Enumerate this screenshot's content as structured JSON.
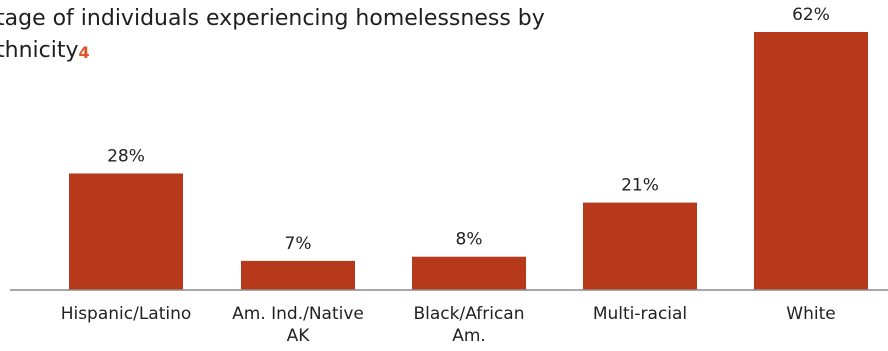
{
  "chart_data": {
    "type": "bar",
    "title_line1": "tage of individuals experiencing homelessness by",
    "title_line2": "thnicity",
    "title_footnote": "4",
    "categories": [
      [
        "Hispanic/Latino"
      ],
      [
        "Am. Ind./Native",
        "AK"
      ],
      [
        "Black/African",
        "Am."
      ],
      [
        "Multi-racial"
      ],
      [
        "White"
      ]
    ],
    "values": [
      28,
      7,
      8,
      21,
      62
    ],
    "value_labels": [
      "28%",
      "7%",
      "8%",
      "21%",
      "62%"
    ],
    "ylim": [
      0,
      62
    ],
    "bar_color": "#b5391a",
    "footnote_color": "#e0552a",
    "axis_color": "#8c8c8c",
    "grid": false
  }
}
